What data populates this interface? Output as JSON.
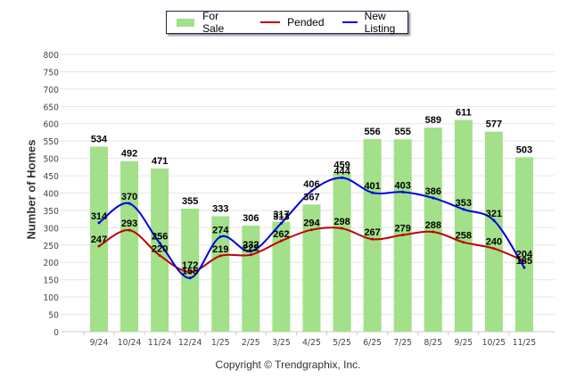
{
  "chart_data": {
    "type": "bar",
    "title": "",
    "xlabel": "",
    "ylabel": "Number of Homes",
    "ylim": [
      0,
      800
    ],
    "yticks": [
      0,
      50,
      100,
      150,
      200,
      250,
      300,
      350,
      400,
      450,
      500,
      550,
      600,
      650,
      700,
      750,
      800
    ],
    "grid": true,
    "legend_position": "top-center",
    "categories": [
      "9/24",
      "10/24",
      "11/24",
      "12/24",
      "1/25",
      "2/25",
      "3/25",
      "4/25",
      "5/25",
      "6/25",
      "7/25",
      "8/25",
      "9/25",
      "10/25",
      "11/25"
    ],
    "series": [
      {
        "name": "For Sale",
        "type": "bar",
        "color": "#a2e08a",
        "values": [
          534,
          492,
          471,
          355,
          333,
          306,
          317,
          367,
          459,
          556,
          555,
          589,
          611,
          577,
          503
        ]
      },
      {
        "name": "Pended",
        "type": "line",
        "color": "#c00000",
        "values": [
          247,
          293,
          220,
          172,
          219,
          222,
          262,
          294,
          298,
          267,
          279,
          288,
          258,
          240,
          204
        ]
      },
      {
        "name": "New Listing",
        "type": "line",
        "color": "#0000e0",
        "values": [
          314,
          370,
          256,
          155,
          274,
          232,
          313,
          406,
          444,
          401,
          403,
          386,
          353,
          321,
          185
        ]
      }
    ]
  },
  "footer": {
    "copyright": "Copyright © Trendgraphix, Inc."
  }
}
